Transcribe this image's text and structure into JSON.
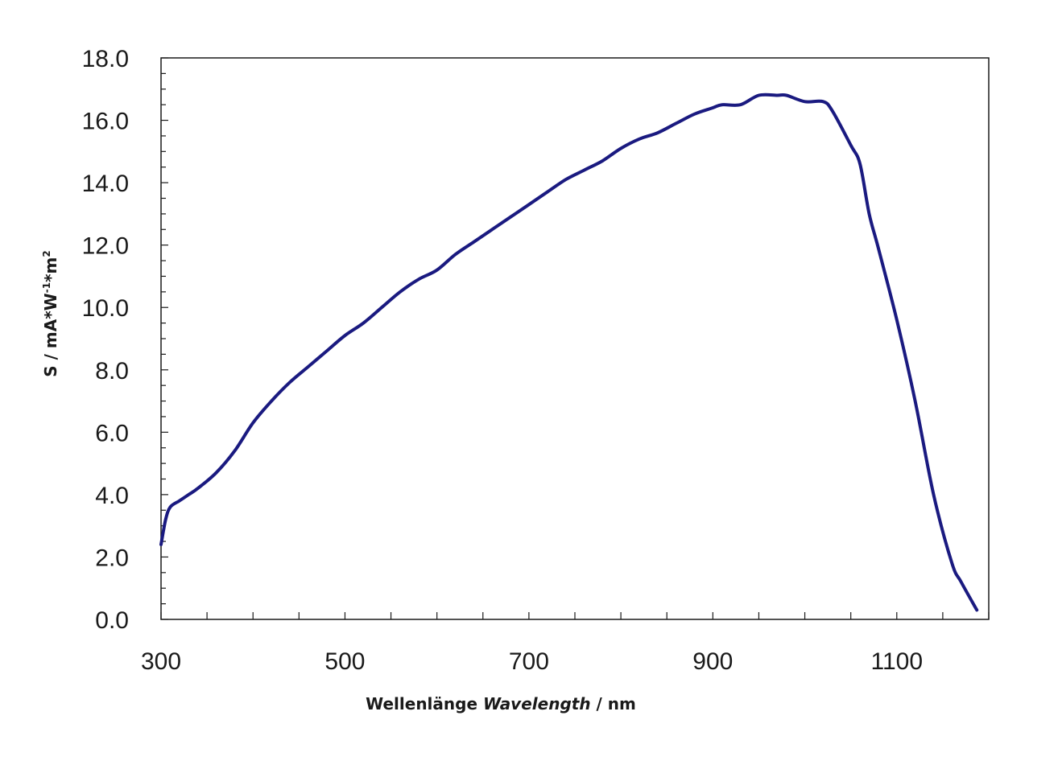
{
  "chart_data": {
    "type": "line",
    "title": "",
    "xlabel": {
      "prefix": "Wellenlänge ",
      "italic": "Wavelength",
      "suffix": " / nm"
    },
    "ylabel": {
      "base": "S / mA*W",
      "sup1": "-1",
      "mid": "*m",
      "sup2": "2"
    },
    "xlim": [
      300,
      1200
    ],
    "ylim": [
      0,
      18
    ],
    "x_ticks": [
      300,
      500,
      700,
      900,
      1100
    ],
    "x_tick_labels": [
      "300",
      "500",
      "700",
      "900",
      "1100"
    ],
    "y_ticks": [
      0,
      2,
      4,
      6,
      8,
      10,
      12,
      14,
      16,
      18
    ],
    "y_tick_labels": [
      "0.0",
      "2.0",
      "4.0",
      "6.0",
      "8.0",
      "10.0",
      "12.0",
      "14.0",
      "16.0",
      "18.0"
    ],
    "grid": false,
    "legend": "none",
    "line_color": "#1a1a80",
    "series": [
      {
        "x": [
          300,
          305,
          310,
          320,
          330,
          340,
          360,
          380,
          400,
          420,
          440,
          460,
          480,
          500,
          520,
          540,
          560,
          580,
          600,
          620,
          640,
          660,
          680,
          700,
          720,
          740,
          760,
          780,
          800,
          820,
          840,
          860,
          880,
          900,
          910,
          930,
          950,
          970,
          980,
          1000,
          1020,
          1030,
          1050,
          1060,
          1070,
          1080,
          1100,
          1120,
          1140,
          1160,
          1170,
          1187
        ],
        "y": [
          2.4,
          3.2,
          3.6,
          3.8,
          4.0,
          4.2,
          4.7,
          5.4,
          6.3,
          7.0,
          7.6,
          8.1,
          8.6,
          9.1,
          9.5,
          10.0,
          10.5,
          10.9,
          11.2,
          11.7,
          12.1,
          12.5,
          12.9,
          13.3,
          13.7,
          14.1,
          14.4,
          14.7,
          15.1,
          15.4,
          15.6,
          15.9,
          16.2,
          16.4,
          16.5,
          16.5,
          16.8,
          16.8,
          16.8,
          16.6,
          16.6,
          16.3,
          15.2,
          14.6,
          13.0,
          11.9,
          9.6,
          7.0,
          4.0,
          1.8,
          1.2,
          0.3
        ]
      }
    ]
  }
}
